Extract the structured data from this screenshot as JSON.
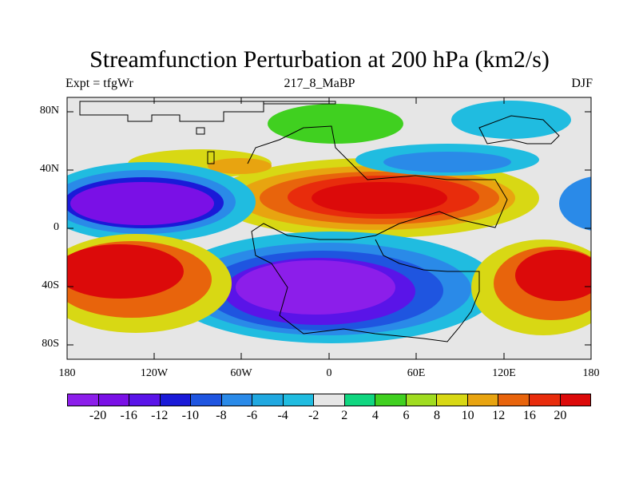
{
  "title": "Streamfunction Perturbation at 200 hPa (km2/s)",
  "subtitle_left": "Expt = tfgWr",
  "subtitle_center": "217_8_MaBP",
  "subtitle_right": "DJF",
  "axes": {
    "y_ticks": [
      "80N",
      "40N",
      "0",
      "40S",
      "80S"
    ],
    "x_ticks": [
      "180",
      "120W",
      "60W",
      "0",
      "60E",
      "120E",
      "180"
    ]
  },
  "colorbar": {
    "colors": [
      "#8c1eea",
      "#7a10e6",
      "#5a14e8",
      "#1a1ad8",
      "#1f55e0",
      "#2a8ae8",
      "#20a8e0",
      "#20bce0",
      "#e6e6e6",
      "#10d680",
      "#40d020",
      "#a0dc20",
      "#d8d814",
      "#e8a410",
      "#e8640c",
      "#e82c0c",
      "#dc0a0a"
    ],
    "labels": [
      "-20",
      "-16",
      "-12",
      "-10",
      "-8",
      "-6",
      "-4",
      "-2",
      "2",
      "4",
      "6",
      "8",
      "10",
      "12",
      "16",
      "20"
    ]
  }
}
